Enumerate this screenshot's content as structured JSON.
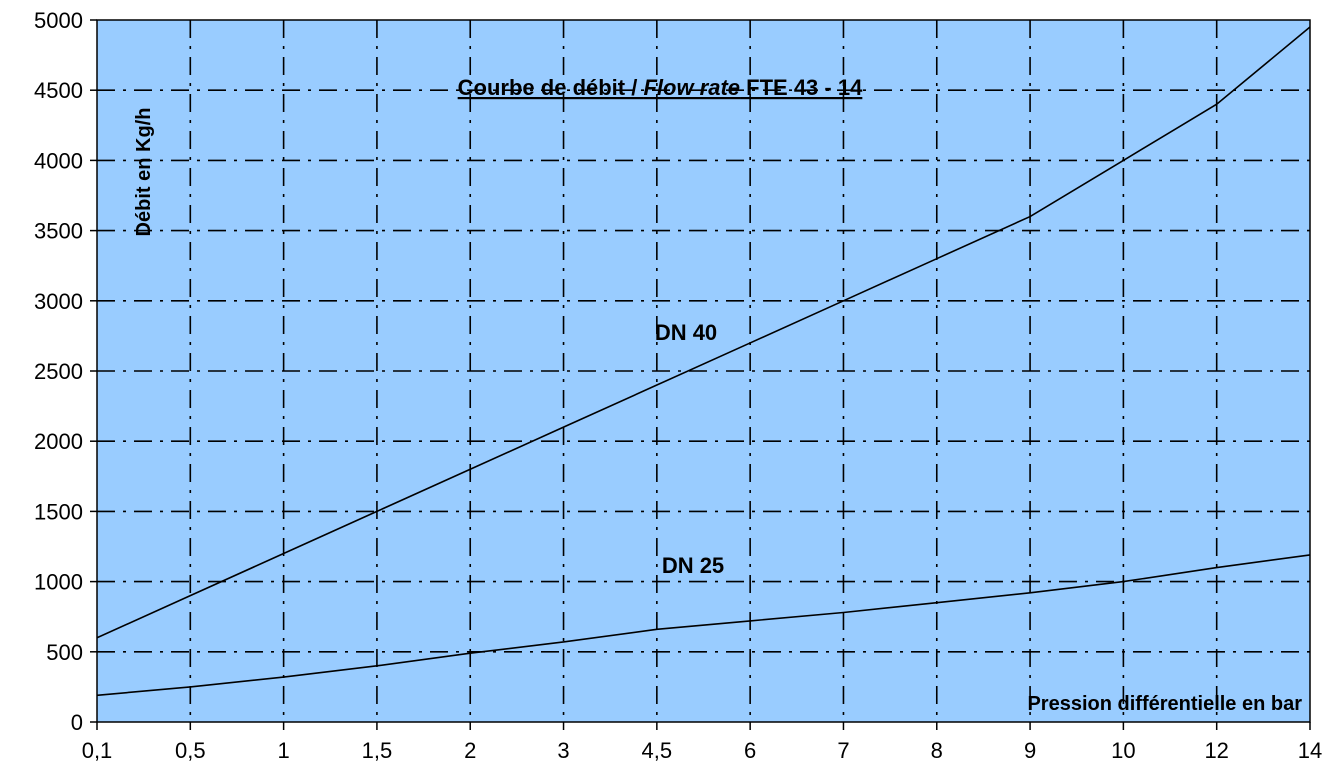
{
  "chart_data": {
    "type": "line",
    "title": {
      "part1": "Courbe de débit / ",
      "part2": "Flow rate",
      "part3": " FTE 43 - 14"
    },
    "xlabel": "Pression différentielle en bar",
    "ylabel": "Débit en Kg/h",
    "x_categories": [
      "0,1",
      "0,5",
      "1",
      "1,5",
      "2",
      "3",
      "4,5",
      "6",
      "7",
      "8",
      "9",
      "10",
      "12",
      "14"
    ],
    "y_ticks": [
      "0",
      "500",
      "1000",
      "1500",
      "2000",
      "2500",
      "3000",
      "3500",
      "4000",
      "4500",
      "5000"
    ],
    "ylim": [
      0,
      5000
    ],
    "grid": true,
    "background_color": "#99ccff",
    "line_color": "#000000",
    "series": [
      {
        "name": "DN 40",
        "values": [
          600,
          900,
          1200,
          1500,
          1800,
          2100,
          2400,
          2700,
          3000,
          3300,
          3600,
          4000,
          4400,
          4950
        ]
      },
      {
        "name": "DN 25",
        "values": [
          190,
          250,
          320,
          400,
          490,
          570,
          660,
          720,
          780,
          850,
          920,
          1000,
          1100,
          1190
        ]
      }
    ]
  }
}
